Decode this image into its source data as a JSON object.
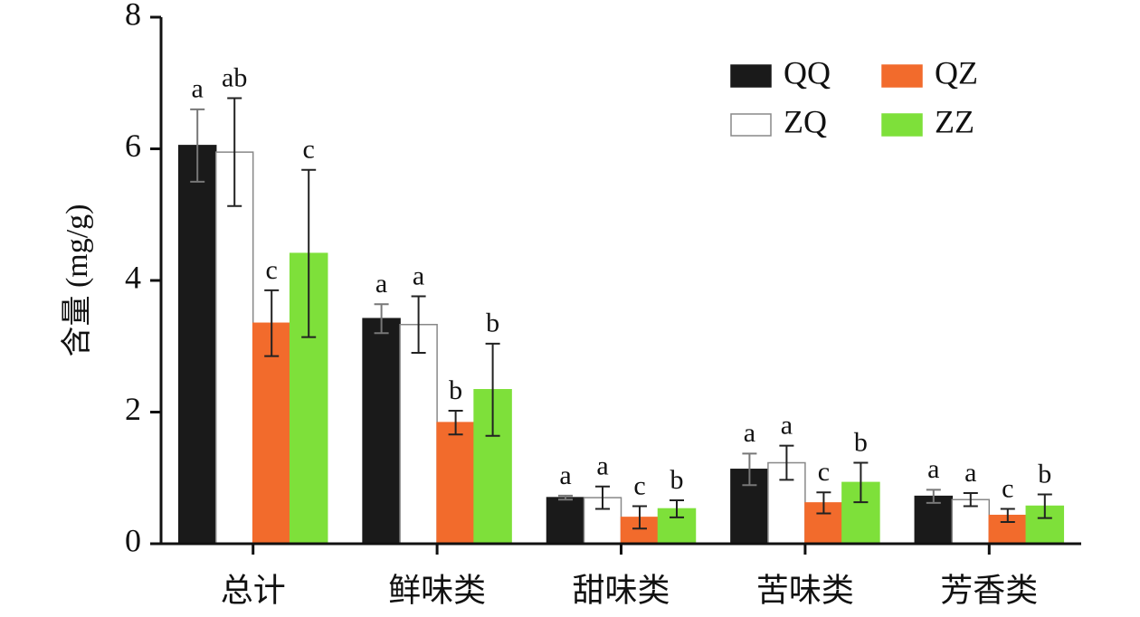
{
  "chart_data": {
    "type": "bar",
    "y_label": "含量 (mg/g)",
    "categories": [
      "总计",
      "鲜味类",
      "甜味类",
      "苦味类",
      "芳香类"
    ],
    "ylim": [
      0,
      8
    ],
    "yticks": [
      0,
      2,
      4,
      6,
      8
    ],
    "series": [
      {
        "name": "QQ",
        "color": "#1a1a1a",
        "values": [
          6.05,
          3.42,
          0.7,
          1.13,
          0.72
        ],
        "errors": [
          0.55,
          0.22,
          0.03,
          0.24,
          0.1
        ],
        "letters": [
          "a",
          "a",
          "a",
          "a",
          "a"
        ]
      },
      {
        "name": "ZQ",
        "color": "#ffffff",
        "values": [
          5.95,
          3.33,
          0.7,
          1.23,
          0.67
        ],
        "errors": [
          0.82,
          0.43,
          0.17,
          0.26,
          0.1
        ],
        "letters": [
          "ab",
          "a",
          "a",
          "a",
          "a"
        ]
      },
      {
        "name": "QZ",
        "color": "#f26b2c",
        "values": [
          3.35,
          1.84,
          0.4,
          0.62,
          0.43
        ],
        "errors": [
          0.5,
          0.18,
          0.17,
          0.16,
          0.1
        ],
        "letters": [
          "c",
          "b",
          "c",
          "c",
          "c"
        ]
      },
      {
        "name": "ZZ",
        "color": "#7ee03a",
        "values": [
          4.41,
          2.34,
          0.53,
          0.93,
          0.57
        ],
        "errors": [
          1.27,
          0.7,
          0.13,
          0.3,
          0.18
        ],
        "letters": [
          "c",
          "b",
          "b",
          "b",
          "b"
        ]
      }
    ]
  }
}
